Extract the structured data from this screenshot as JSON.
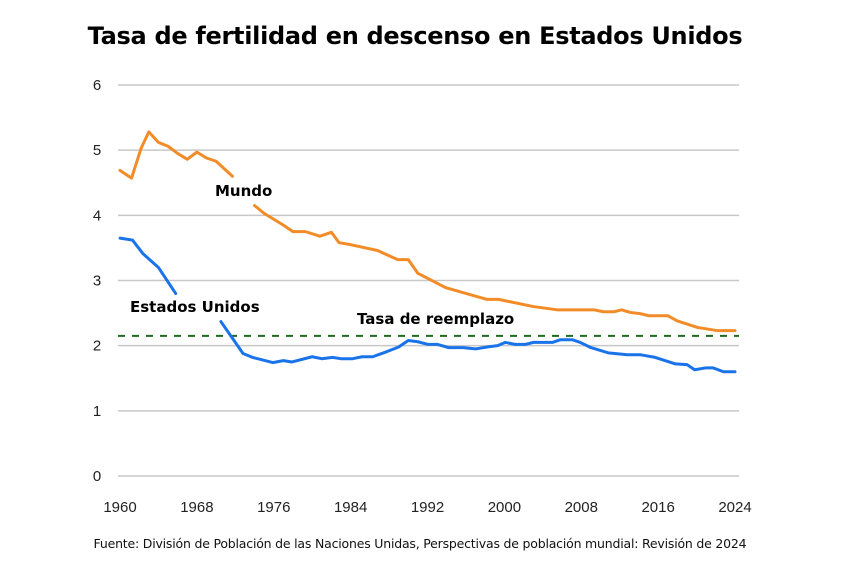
{
  "chart_data": {
    "type": "line",
    "title": "Tasa de fertilidad en descenso en Estados Unidos",
    "xlabel": "",
    "ylabel": "",
    "xlim": [
      1960,
      2024
    ],
    "ylim": [
      0,
      6
    ],
    "grid": true,
    "x_ticks": [
      1960,
      1968,
      1976,
      1984,
      1992,
      2000,
      2008,
      2016,
      2024
    ],
    "y_ticks": [
      0,
      1,
      2,
      3,
      4,
      5,
      6
    ],
    "series": [
      {
        "name": "Mundo",
        "color": "#F28C28",
        "x": [
          1960,
          1961.2,
          1962.2,
          1963,
          1964,
          1965,
          1966,
          1967,
          1968,
          1969,
          1970,
          1971.7,
          1974,
          1975,
          1977,
          1978,
          1979.3,
          1980.8,
          1982,
          1982.8,
          1984,
          1986.8,
          1988,
          1988.9,
          1990,
          1991,
          1993.9,
          1998.2,
          1999.4,
          2003,
          2005.5,
          2009.3,
          2010.3,
          2011.4,
          2012.2,
          2013.1,
          2014.2,
          2015,
          2017,
          2018,
          2020.1,
          2022.2,
          2024
        ],
        "values": [
          4.69,
          4.57,
          5.03,
          5.28,
          5.12,
          5.06,
          4.95,
          4.86,
          4.97,
          4.88,
          4.83,
          4.6,
          4.15,
          4.03,
          3.85,
          3.75,
          3.75,
          3.68,
          3.74,
          3.58,
          3.55,
          3.46,
          3.38,
          3.32,
          3.32,
          3.11,
          2.89,
          2.71,
          2.71,
          2.6,
          2.55,
          2.55,
          2.52,
          2.52,
          2.55,
          2.51,
          2.49,
          2.46,
          2.46,
          2.38,
          2.28,
          2.23,
          2.23
        ],
        "label_gap": [
          1971.7,
          1974
        ]
      },
      {
        "name": "Estados Unidos",
        "color": "#1A73E8",
        "x": [
          1960,
          1961.3,
          1962.4,
          1964,
          1965.8,
          1970.5,
          1972.8,
          1973.8,
          1975.9,
          1977,
          1977.9,
          1980,
          1981,
          1982.1,
          1983,
          1984.2,
          1985.2,
          1986.3,
          1987.8,
          1989,
          1990,
          1991,
          1992,
          1993,
          1994.2,
          1995.7,
          1997,
          1998.2,
          1999.3,
          2000.1,
          2001.1,
          2002.2,
          2003,
          2005,
          2005.8,
          2007.1,
          2007.9,
          2009,
          2010.8,
          2012.8,
          2014.2,
          2015.7,
          2017.8,
          2019,
          2019.8,
          2021,
          2021.7,
          2022.8,
          2024
        ],
        "values": [
          3.65,
          3.62,
          3.41,
          3.2,
          2.8,
          2.37,
          1.88,
          1.82,
          1.74,
          1.77,
          1.75,
          1.83,
          1.8,
          1.82,
          1.8,
          1.8,
          1.83,
          1.83,
          1.91,
          1.98,
          2.08,
          2.06,
          2.02,
          2.02,
          1.97,
          1.97,
          1.95,
          1.98,
          2.0,
          2.05,
          2.02,
          2.02,
          2.05,
          2.05,
          2.09,
          2.09,
          2.05,
          1.97,
          1.89,
          1.86,
          1.86,
          1.82,
          1.72,
          1.71,
          1.63,
          1.66,
          1.66,
          1.6,
          1.6
        ],
        "label_gap": [
          1965.8,
          1970.5
        ]
      }
    ],
    "reference_lines": [
      {
        "name": "Tasa de reemplazo",
        "value": 2.15,
        "color": "#1E6B1E",
        "style": "dashed"
      }
    ],
    "annotations": [
      {
        "text": "Mundo",
        "series": "Mundo"
      },
      {
        "text": "Estados Unidos",
        "series": "Estados Unidos"
      },
      {
        "text": "Tasa de reemplazo",
        "series": "reference"
      }
    ],
    "source": "Fuente: División de Población de las Naciones Unidas, Perspectivas de población mundial: Revisión de 2024"
  }
}
